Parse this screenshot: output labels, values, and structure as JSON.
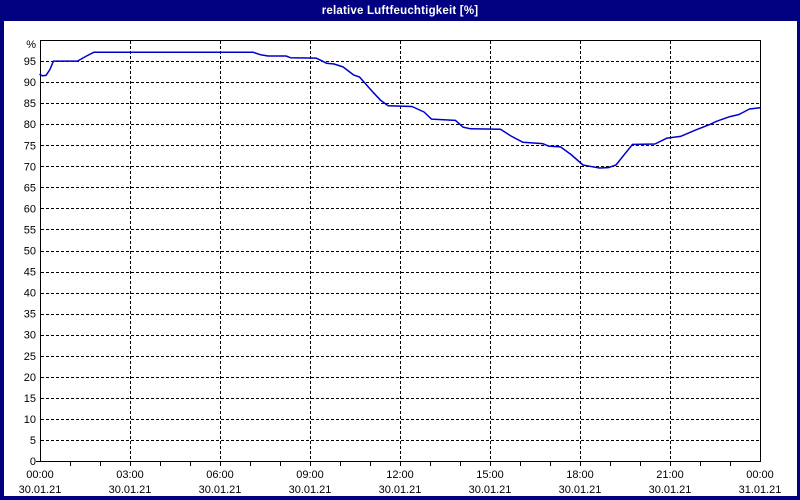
{
  "window": {
    "title": "relative Luftfeuchtigkeit [%]",
    "colors": {
      "frame": "#000080",
      "title_text": "#ffffff",
      "background": "#ffffff"
    }
  },
  "chart_data": {
    "type": "line",
    "title": "relative Luftfeuchtigkeit [%]",
    "xlabel": "",
    "ylabel": "%",
    "ylim": [
      0,
      100
    ],
    "xlim_hours": [
      0,
      24
    ],
    "grid": "dashed",
    "legend": "none",
    "line_color": "#0000cc",
    "grid_color": "#000000",
    "border_color": "#000000",
    "text_color": "#000000",
    "y_axis": {
      "unit_label": "%",
      "tick_values": [
        0,
        5,
        10,
        15,
        20,
        25,
        30,
        35,
        40,
        45,
        50,
        55,
        60,
        65,
        70,
        75,
        80,
        85,
        90,
        95
      ],
      "grid_values": [
        5,
        10,
        15,
        20,
        25,
        30,
        35,
        40,
        45,
        50,
        55,
        60,
        65,
        70,
        75,
        80,
        85,
        90,
        95
      ]
    },
    "x_axis": {
      "ticks": [
        {
          "hour": 0,
          "time": "00:00",
          "date": "30.01.21"
        },
        {
          "hour": 3,
          "time": "03:00",
          "date": "30.01.21"
        },
        {
          "hour": 6,
          "time": "06:00",
          "date": "30.01.21"
        },
        {
          "hour": 9,
          "time": "09:00",
          "date": "30.01.21"
        },
        {
          "hour": 12,
          "time": "12:00",
          "date": "30.01.21"
        },
        {
          "hour": 15,
          "time": "15:00",
          "date": "30.01.21"
        },
        {
          "hour": 18,
          "time": "18:00",
          "date": "30.01.21"
        },
        {
          "hour": 21,
          "time": "21:00",
          "date": "30.01.21"
        },
        {
          "hour": 24,
          "time": "00:00",
          "date": "31.01.21"
        }
      ],
      "hour_tick_marks": [
        1,
        2,
        3,
        4,
        5,
        6,
        7,
        8,
        9,
        10,
        11,
        12,
        13,
        14,
        15,
        16,
        17,
        18,
        19,
        20,
        21,
        22,
        23
      ]
    },
    "series": [
      {
        "name": "relative Luftfeuchtigkeit",
        "points": [
          [
            0.0,
            91.8
          ],
          [
            0.08,
            91.5
          ],
          [
            0.2,
            91.6
          ],
          [
            0.33,
            93.0
          ],
          [
            0.45,
            95.0
          ],
          [
            1.25,
            95.0
          ],
          [
            1.55,
            96.2
          ],
          [
            1.8,
            97.1
          ],
          [
            7.1,
            97.1
          ],
          [
            7.35,
            96.5
          ],
          [
            7.6,
            96.2
          ],
          [
            8.2,
            96.2
          ],
          [
            8.35,
            95.8
          ],
          [
            9.2,
            95.7
          ],
          [
            9.35,
            95.2
          ],
          [
            9.55,
            94.5
          ],
          [
            9.8,
            94.3
          ],
          [
            10.1,
            93.6
          ],
          [
            10.45,
            91.7
          ],
          [
            10.65,
            91.2
          ],
          [
            11.1,
            87.6
          ],
          [
            11.35,
            85.7
          ],
          [
            11.6,
            84.4
          ],
          [
            12.4,
            84.2
          ],
          [
            12.8,
            82.9
          ],
          [
            13.05,
            81.2
          ],
          [
            13.85,
            80.9
          ],
          [
            14.1,
            79.3
          ],
          [
            14.35,
            78.9
          ],
          [
            15.35,
            78.8
          ],
          [
            15.7,
            77.2
          ],
          [
            16.1,
            75.7
          ],
          [
            16.75,
            75.4
          ],
          [
            16.95,
            74.8
          ],
          [
            17.35,
            74.6
          ],
          [
            17.7,
            72.8
          ],
          [
            18.1,
            70.3
          ],
          [
            18.4,
            69.9
          ],
          [
            18.65,
            69.6
          ],
          [
            18.95,
            69.7
          ],
          [
            19.2,
            70.3
          ],
          [
            19.5,
            73.0
          ],
          [
            19.75,
            75.2
          ],
          [
            20.5,
            75.3
          ],
          [
            20.9,
            76.7
          ],
          [
            21.35,
            77.1
          ],
          [
            21.85,
            78.6
          ],
          [
            22.35,
            80.0
          ],
          [
            22.55,
            80.7
          ],
          [
            23.0,
            81.8
          ],
          [
            23.3,
            82.3
          ],
          [
            23.65,
            83.6
          ],
          [
            24.0,
            83.9
          ]
        ]
      }
    ]
  }
}
